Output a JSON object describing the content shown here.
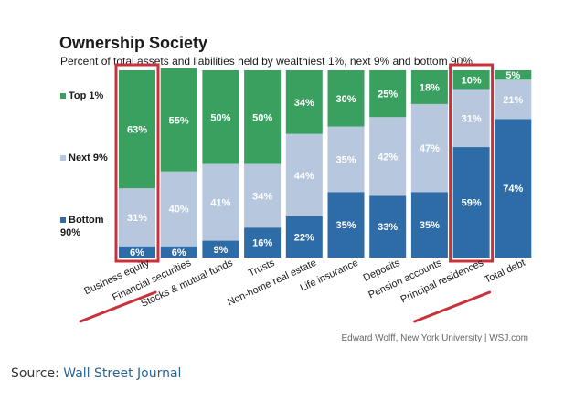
{
  "chart_data": {
    "type": "bar",
    "stacked": true,
    "title": "Ownership Society",
    "subtitle": "Percent of total assets and liabilities held by wealthiest 1%, next 9% and bottom 90%",
    "categories": [
      "Business equity",
      "Financial securities",
      "Stocks & mutual funds",
      "Trusts",
      "Non-home real estate",
      "Life insurance",
      "Deposits",
      "Pension accounts",
      "Principal residences",
      "Total debt"
    ],
    "series": [
      {
        "name": "Bottom 90%",
        "color": "#2e6ca8",
        "values": [
          6,
          6,
          9,
          16,
          22,
          35,
          33,
          35,
          59,
          74
        ],
        "labels": [
          "6%",
          "6%",
          "9%",
          "16%",
          "22%",
          "35%",
          "33%",
          "35%",
          "59%",
          "74%"
        ]
      },
      {
        "name": "Next 9%",
        "color": "#b7c7dd",
        "values": [
          31,
          40,
          41,
          34,
          44,
          35,
          42,
          47,
          31,
          21
        ],
        "labels": [
          "31%",
          "40%",
          "41%",
          "34%",
          "44%",
          "35%",
          "42%",
          "47%",
          "31%",
          "21%"
        ]
      },
      {
        "name": "Top 1%",
        "color": "#3aa060",
        "values": [
          63,
          55,
          50,
          50,
          34,
          30,
          25,
          18,
          10,
          5
        ],
        "labels": [
          "63%",
          "55%",
          "50%",
          "50%",
          "34%",
          "30%",
          "25%",
          "18%",
          "10%",
          "5%"
        ]
      }
    ],
    "legend": [
      "Top 1%",
      "Next 9%",
      "Bottom 90%"
    ],
    "ylim": [
      0,
      100
    ],
    "highlighted_categories": [
      "Business equity",
      "Principal residences"
    ],
    "highlight_color": "#c8323c",
    "credit": "Edward Wolff, New York University  |  WSJ.com"
  },
  "source": {
    "prefix": "Source: ",
    "link_text": "Wall Street Journal"
  }
}
